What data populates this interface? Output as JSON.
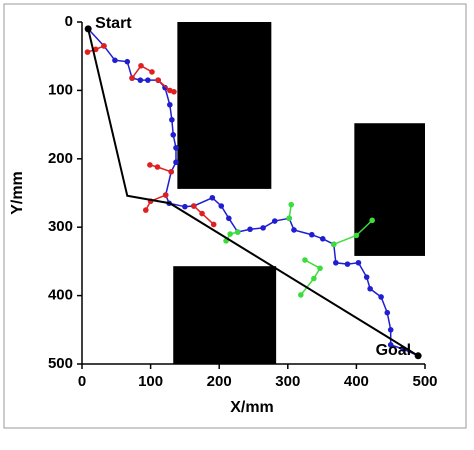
{
  "chart_data": {
    "type": "line",
    "x_label": "X/mm",
    "y_label": "Y/mm",
    "xlim": [
      0,
      500
    ],
    "ylim": [
      0,
      500
    ],
    "y_inverted": true,
    "xticks": [
      0,
      100,
      200,
      300,
      400,
      500
    ],
    "yticks": [
      0,
      100,
      200,
      300,
      400,
      500
    ],
    "obstacle_color": "#000000",
    "obstacles": [
      {
        "x": [
          139,
          276
        ],
        "y": [
          0,
          244
        ]
      },
      {
        "x": [
          397,
          500
        ],
        "y": [
          148,
          342
        ]
      },
      {
        "x": [
          133,
          283
        ],
        "y": [
          357,
          500
        ]
      }
    ],
    "series": [
      {
        "color": "#1f1fd0",
        "markers": true,
        "x": [
          9,
          32,
          48,
          66,
          73,
          85,
          96,
          111,
          121,
          128,
          131,
          133,
          137,
          137,
          130,
          122,
          127,
          150,
          163,
          190,
          203,
          214,
          227,
          245,
          264,
          281,
          302,
          309,
          335,
          351,
          367,
          370,
          387,
          403,
          415,
          420,
          436,
          445,
          450,
          450,
          468,
          490
        ],
        "values": [
          10,
          35,
          56,
          58,
          82,
          85,
          85,
          85,
          96,
          121,
          143,
          165,
          184,
          205,
          219,
          253,
          265,
          270,
          269,
          257,
          269,
          287,
          307,
          303,
          301,
          291,
          287,
          304,
          311,
          317,
          325,
          352,
          354,
          352,
          373,
          390,
          402,
          425,
          450,
          472,
          478,
          488
        ]
      },
      {
        "color": "#e02020",
        "markers": true,
        "x": [
          32,
          20,
          8
        ],
        "values": [
          35,
          40,
          44
        ]
      },
      {
        "color": "#e02020",
        "markers": true,
        "x": [
          73,
          86,
          102
        ],
        "values": [
          82,
          64,
          73
        ]
      },
      {
        "color": "#e02020",
        "markers": true,
        "x": [
          111,
          128,
          134
        ],
        "values": [
          85,
          100,
          102
        ]
      },
      {
        "color": "#e02020",
        "markers": true,
        "x": [
          130,
          110,
          99
        ],
        "values": [
          219,
          212,
          209
        ]
      },
      {
        "color": "#e02020",
        "markers": true,
        "x": [
          122,
          100,
          93
        ],
        "values": [
          253,
          262,
          275
        ]
      },
      {
        "color": "#e02020",
        "markers": true,
        "x": [
          163,
          175,
          192
        ],
        "values": [
          269,
          280,
          296
        ]
      },
      {
        "color": "#3cdc3c",
        "markers": true,
        "x": [
          227,
          216,
          210
        ],
        "values": [
          307,
          310,
          320
        ]
      },
      {
        "color": "#3cdc3c",
        "markers": true,
        "x": [
          302,
          305
        ],
        "values": [
          287,
          267
        ]
      },
      {
        "color": "#3cdc3c",
        "markers": true,
        "x": [
          367,
          400,
          423
        ],
        "values": [
          325,
          312,
          290
        ]
      },
      {
        "color": "#3cdc3c",
        "markers": true,
        "x": [
          325,
          347,
          338,
          319
        ],
        "values": [
          348,
          360,
          375,
          399
        ]
      },
      {
        "color": "#000000",
        "markers": false,
        "x": [
          9,
          66,
          128,
          490
        ],
        "values": [
          10,
          254,
          265,
          488
        ]
      }
    ],
    "annotations": [
      {
        "text": "Start",
        "x": 9,
        "y": 10
      },
      {
        "text": "Goal",
        "x": 490,
        "y": 488
      }
    ]
  }
}
